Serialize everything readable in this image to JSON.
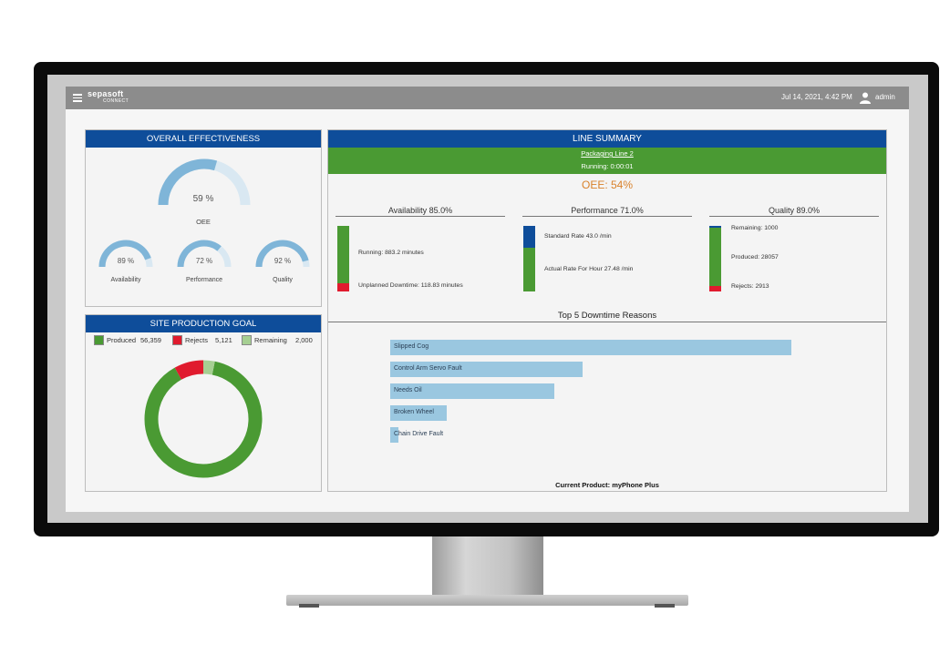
{
  "header": {
    "logo": "sepasoft",
    "logo_sub": "CONNECT",
    "datetime": "Jul 14, 2021, 4:42 PM",
    "username": "admin"
  },
  "overall_effectiveness": {
    "title": "OVERALL EFFECTIVENESS",
    "oee": {
      "value": 59,
      "text": "59 %",
      "label": "OEE"
    },
    "availability": {
      "value": 89,
      "text": "89 %",
      "label": "Availability"
    },
    "performance": {
      "value": 72,
      "text": "72 %",
      "label": "Performance"
    },
    "quality": {
      "value": 92,
      "text": "92 %",
      "label": "Quality"
    }
  },
  "site_production_goal": {
    "title": "SITE PRODUCTION GOAL",
    "legend": [
      {
        "label": "Produced",
        "value": "56,359",
        "color": "#4a9a33"
      },
      {
        "label": "Rejects",
        "value": "5,121",
        "color": "#e01b2e"
      },
      {
        "label": "Remaining",
        "value": "2,000",
        "color": "#a6cf92"
      }
    ],
    "values": [
      56359,
      5121,
      2000
    ]
  },
  "line_summary": {
    "title": "LINE SUMMARY",
    "line_name": "Packaging Line 2",
    "status": "Running: 0:00:01",
    "oee": "OEE: 54%",
    "availability": {
      "header": "Availability 85.0%",
      "running": "Running: 883.2 minutes",
      "downtime": "Unplanned Downtime: 118.83 minutes",
      "fractions": [
        0.88,
        0.12
      ]
    },
    "performance": {
      "header": "Performance 71.0%",
      "standard": "Standard Rate 43.0 /min",
      "actual": "Actual Rate For Hour 27.48 /min",
      "fractions": [
        0.34,
        0.66
      ]
    },
    "quality": {
      "header": "Quality 89.0%",
      "remaining": "Remaining: 1000",
      "produced": "Produced: 28057",
      "rejects": "Rejects: 2913",
      "fractions": [
        0.03,
        0.88,
        0.09
      ]
    },
    "downtime_title": "Top 5 Downtime Reasons",
    "downtime": [
      {
        "label": "Slipped Cog",
        "value": 100
      },
      {
        "label": "Control Arm Servo Fault",
        "value": 48
      },
      {
        "label": "Needs Oil",
        "value": 41
      },
      {
        "label": "Broken Wheel",
        "value": 14
      },
      {
        "label": "Chain Drive Fault",
        "value": 2
      }
    ],
    "current_product": "Current Product: myPhone Plus"
  },
  "colors": {
    "blue": "#0e4d9a",
    "green": "#4a9a33",
    "red": "#e01b2e",
    "gauge": "#7fb5d8",
    "gauge_bg": "#d9e8f2",
    "bar": "#9ac7e0",
    "oee_orange": "#d9822b"
  }
}
